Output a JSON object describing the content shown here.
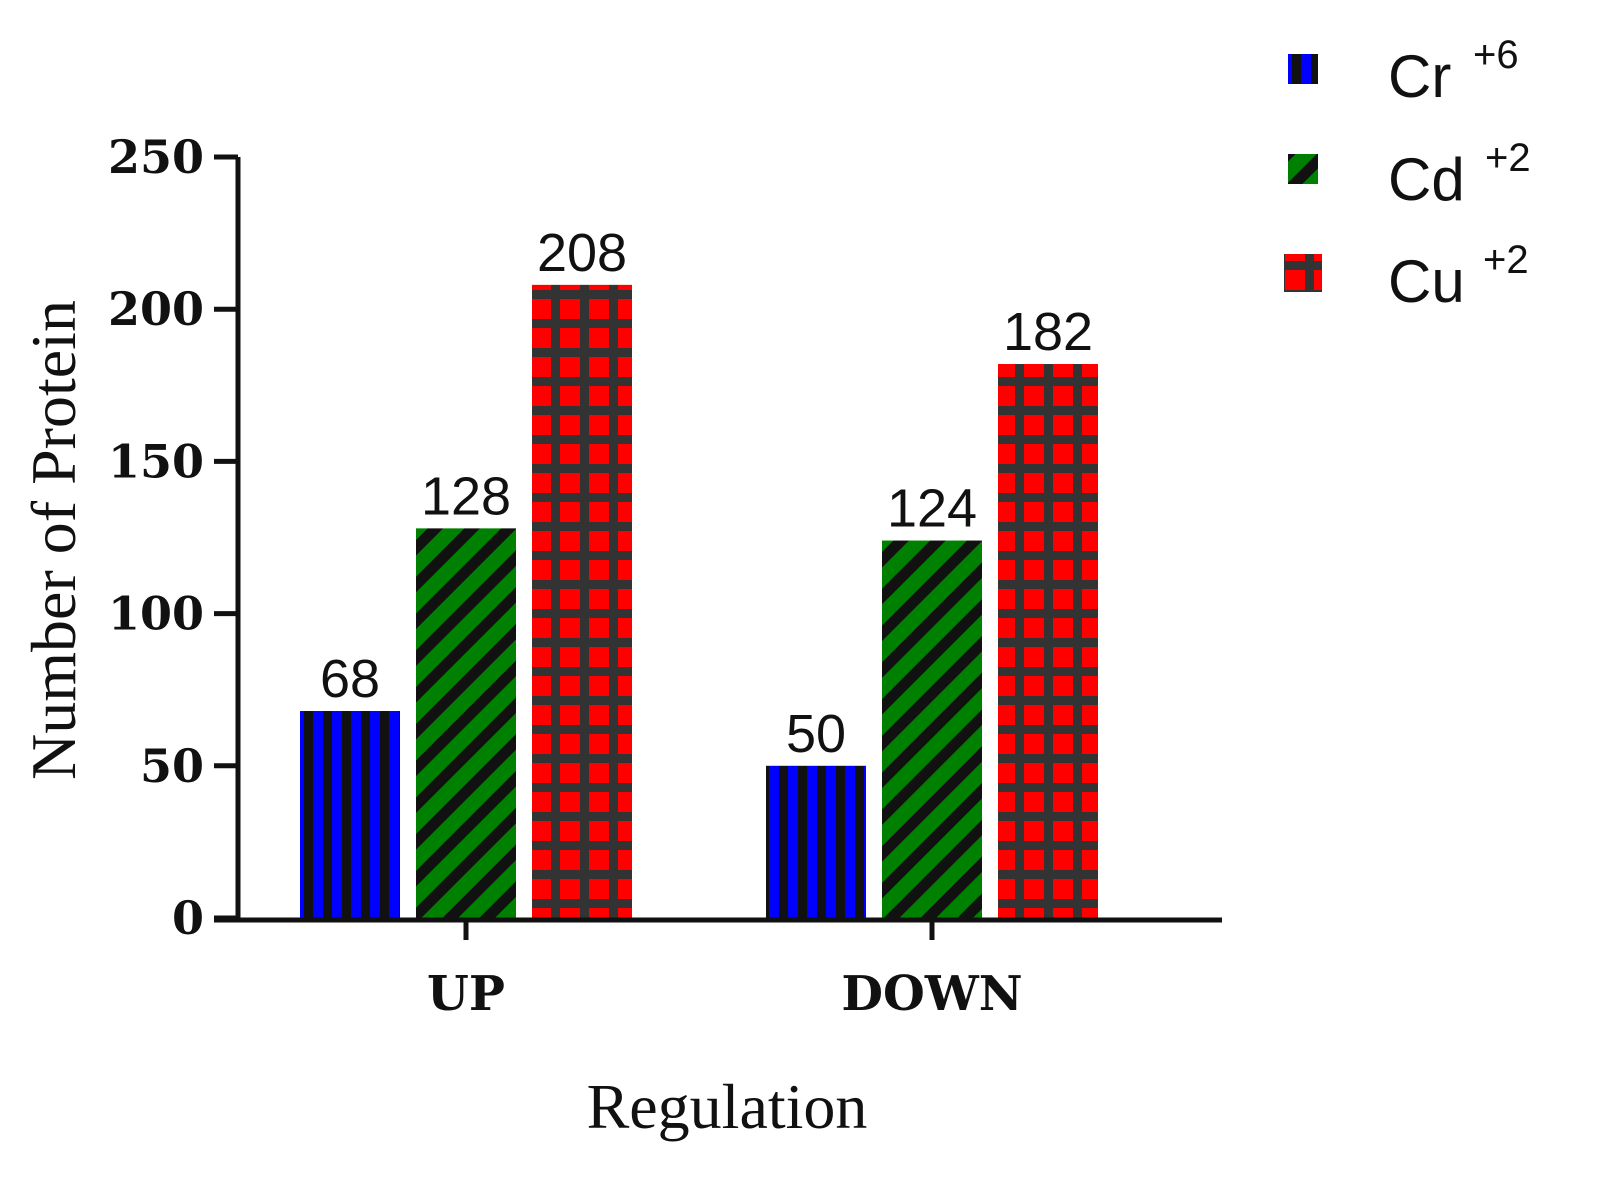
{
  "chart_data": {
    "type": "bar",
    "categories": [
      "UP",
      "DOWN"
    ],
    "series": [
      {
        "name": "Cr",
        "superscript": "+6",
        "values": [
          68,
          50
        ],
        "color": "#0000ff",
        "pattern": "vertical-stripes"
      },
      {
        "name": "Cd",
        "superscript": "+2",
        "values": [
          128,
          124
        ],
        "color": "#008000",
        "pattern": "diagonal-stripes"
      },
      {
        "name": "Cu",
        "superscript": "+2",
        "values": [
          208,
          182
        ],
        "color": "#ff0000",
        "pattern": "grid"
      }
    ],
    "xlabel": "Regulation",
    "ylabel": "Number of Protein",
    "ylim": [
      0,
      250
    ],
    "yticks": [
      0,
      50,
      100,
      150,
      200,
      250
    ],
    "grid": false,
    "legend": "top-right",
    "pattern_color": "#333333"
  }
}
